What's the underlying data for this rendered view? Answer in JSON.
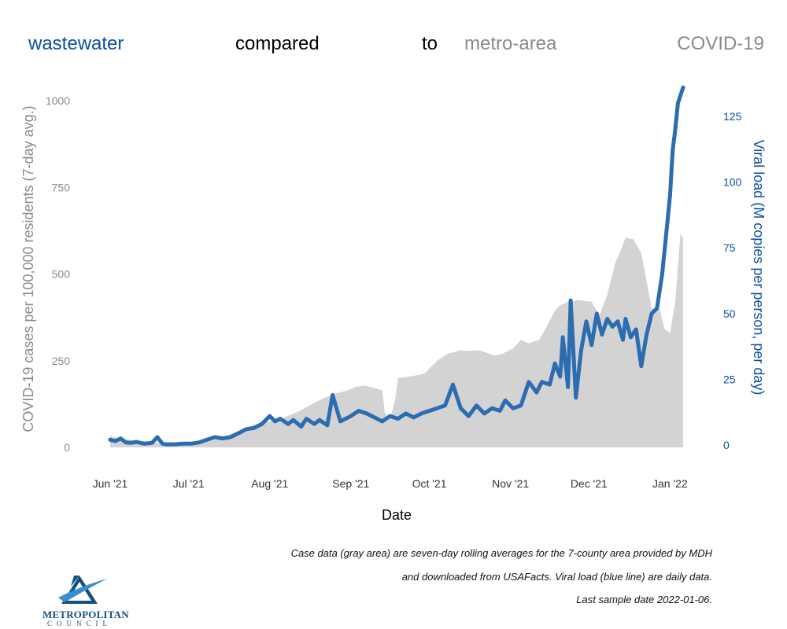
{
  "title_words": [
    {
      "text": "wastewater",
      "color": "#0b4f9e"
    },
    {
      "text": "compared",
      "color": "#000000"
    },
    {
      "text": "to",
      "color": "#000000"
    },
    {
      "text": "metro-area",
      "color": "#8a8a8a"
    },
    {
      "text": "COVID-19",
      "color": "#8a8a8a"
    }
  ],
  "notes": [
    "Case data (gray area) are seven-day rolling averages for the 7-county area provided by MDH",
    "and downloaded from USAFacts. Viral load (blue line) are daily data.",
    "Last sample date 2022-01-06."
  ],
  "logo": {
    "name": "METROPOLITAN",
    "subname": "COUNCIL",
    "colors": {
      "primary": "#14507e",
      "accent": "#3a8dd0"
    }
  },
  "chart_data": {
    "type": "area",
    "xlabel": "Date",
    "ylabel_left": "COVID-19 cases per 100,000 residents (7-day avg.)",
    "ylabel_right": "Viral load (M copies per person, per day)",
    "x_ticks": [
      "Jun '21",
      "Jul '21",
      "Aug '21",
      "Sep '21",
      "Oct '21",
      "Nov '21",
      "Dec '21",
      "Jan '22"
    ],
    "x_tick_dates": [
      "2021-06-01",
      "2021-07-01",
      "2021-08-01",
      "2021-09-01",
      "2021-10-01",
      "2021-11-01",
      "2021-12-01",
      "2022-01-01"
    ],
    "xlim": [
      "2021-06-01",
      "2022-01-06"
    ],
    "y_left_ticks": [
      0,
      250,
      500,
      750,
      1000
    ],
    "y_left_lim": [
      0,
      1010
    ],
    "y_right_ticks": [
      0,
      25,
      50,
      75,
      100,
      125
    ],
    "y_right_lim": [
      0,
      137
    ],
    "grid": false,
    "colors": {
      "cases": "#d3d3d3",
      "viral": "#2c6db1",
      "left_axis": "#8a8a8a",
      "right_axis": "#0b4f9e"
    },
    "series": [
      {
        "name": "Case data (gray area)",
        "axis": "left",
        "dates": [
          "2021-06-01",
          "2021-06-02",
          "2021-06-05",
          "2021-06-10",
          "2021-06-15",
          "2021-06-20",
          "2021-06-25",
          "2021-07-01",
          "2021-07-06",
          "2021-07-11",
          "2021-07-16",
          "2021-07-21",
          "2021-07-26",
          "2021-08-01",
          "2021-08-06",
          "2021-08-11",
          "2021-08-16",
          "2021-08-21",
          "2021-08-26",
          "2021-08-31",
          "2021-09-03",
          "2021-09-06",
          "2021-09-08",
          "2021-09-13",
          "2021-09-14",
          "2021-09-16",
          "2021-09-18",
          "2021-09-19",
          "2021-09-24",
          "2021-09-29",
          "2021-10-02",
          "2021-10-04",
          "2021-10-08",
          "2021-10-13",
          "2021-10-16",
          "2021-10-20",
          "2021-10-26",
          "2021-10-29",
          "2021-11-02",
          "2021-11-05",
          "2021-11-08",
          "2021-11-12",
          "2021-11-15",
          "2021-11-18",
          "2021-11-20",
          "2021-11-23",
          "2021-11-27",
          "2021-12-02",
          "2021-12-05",
          "2021-12-08",
          "2021-12-11",
          "2021-12-13",
          "2021-12-15",
          "2021-12-18",
          "2021-12-21",
          "2021-12-23",
          "2021-12-25",
          "2021-12-28",
          "2021-12-30",
          "2022-01-01",
          "2022-01-03",
          "2022-01-05",
          "2022-01-06"
        ],
        "values": [
          35,
          30,
          25,
          20,
          15,
          12,
          10,
          12,
          15,
          22,
          35,
          50,
          65,
          75,
          85,
          100,
          120,
          140,
          155,
          165,
          175,
          178,
          175,
          165,
          100,
          80,
          140,
          200,
          205,
          212,
          235,
          250,
          270,
          280,
          278,
          280,
          265,
          270,
          285,
          310,
          300,
          310,
          350,
          395,
          410,
          420,
          425,
          420,
          380,
          440,
          530,
          565,
          605,
          600,
          560,
          480,
          400,
          400,
          340,
          330,
          420,
          620,
          600
        ]
      },
      {
        "name": "Viral load (blue line)",
        "axis": "right",
        "dates": [
          "2021-06-01",
          "2021-06-03",
          "2021-06-05",
          "2021-06-07",
          "2021-06-09",
          "2021-06-11",
          "2021-06-14",
          "2021-06-17",
          "2021-06-19",
          "2021-06-21",
          "2021-06-23",
          "2021-06-26",
          "2021-06-29",
          "2021-07-02",
          "2021-07-05",
          "2021-07-08",
          "2021-07-11",
          "2021-07-14",
          "2021-07-17",
          "2021-07-20",
          "2021-07-23",
          "2021-07-26",
          "2021-07-29",
          "2021-08-01",
          "2021-08-03",
          "2021-08-05",
          "2021-08-08",
          "2021-08-10",
          "2021-08-13",
          "2021-08-15",
          "2021-08-18",
          "2021-08-20",
          "2021-08-23",
          "2021-08-25",
          "2021-08-28",
          "2021-09-01",
          "2021-09-04",
          "2021-09-07",
          "2021-09-10",
          "2021-09-13",
          "2021-09-16",
          "2021-09-19",
          "2021-09-22",
          "2021-09-25",
          "2021-09-28",
          "2021-10-01",
          "2021-10-04",
          "2021-10-07",
          "2021-10-10",
          "2021-10-13",
          "2021-10-16",
          "2021-10-19",
          "2021-10-22",
          "2021-10-25",
          "2021-10-28",
          "2021-10-30",
          "2021-11-02",
          "2021-11-05",
          "2021-11-08",
          "2021-11-11",
          "2021-11-13",
          "2021-11-16",
          "2021-11-18",
          "2021-11-20",
          "2021-11-21",
          "2021-11-23",
          "2021-11-24",
          "2021-11-26",
          "2021-11-28",
          "2021-11-30",
          "2021-12-02",
          "2021-12-04",
          "2021-12-06",
          "2021-12-08",
          "2021-12-10",
          "2021-12-12",
          "2021-12-14",
          "2021-12-15",
          "2021-12-17",
          "2021-12-19",
          "2021-12-21",
          "2021-12-23",
          "2021-12-25",
          "2021-12-27",
          "2021-12-29",
          "2021-12-31",
          "2022-01-01",
          "2022-01-02",
          "2022-01-03",
          "2022-01-04",
          "2022-01-05",
          "2022-01-06"
        ],
        "values": [
          2,
          1.5,
          2.5,
          1,
          0.8,
          1.2,
          0.5,
          0.8,
          3,
          0.5,
          0.2,
          0.3,
          0.5,
          0.5,
          1,
          2,
          3,
          2.5,
          3,
          4.5,
          6,
          6.5,
          8,
          11,
          9,
          10,
          8,
          9.5,
          7,
          10,
          8,
          9.5,
          7.5,
          19,
          9,
          11,
          13,
          12,
          10.5,
          9,
          11,
          10,
          12,
          10.5,
          12,
          13,
          14,
          15,
          23,
          14,
          11,
          15,
          12,
          14,
          13,
          17,
          14,
          15,
          24,
          20,
          24,
          23,
          31,
          26,
          41,
          22,
          55,
          18,
          36,
          47,
          38,
          50,
          42,
          48,
          45,
          47,
          40,
          48,
          41,
          44,
          30,
          42,
          50,
          52,
          65,
          85,
          95,
          112,
          120,
          130,
          133,
          136
        ]
      }
    ]
  }
}
